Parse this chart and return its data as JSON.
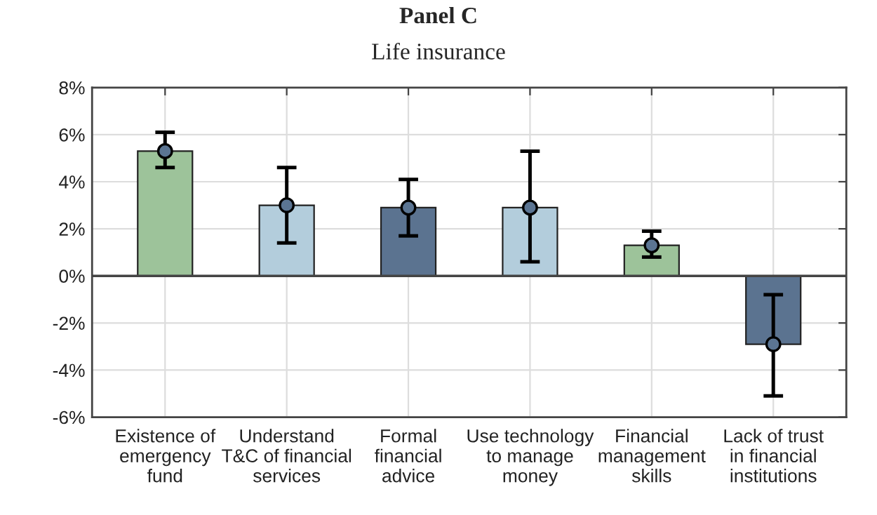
{
  "chart_data": {
    "type": "bar",
    "title": "Panel C",
    "subtitle": "Life insurance",
    "categories": [
      "Existence of\nemergency\nfund",
      "Understand\nT&C of financial\nservices",
      "Formal\nfinancial\nadvice",
      "Use technology\nto manage\nmoney",
      "Financial\nmanagement\nskills",
      "Lack of trust\nin financial\ninstitutions"
    ],
    "series": [
      {
        "colors": [
          "#9dc39a",
          "#b3cddc",
          "#5b7390",
          "#b3cddc",
          "#9dc39a",
          "#5b7390"
        ],
        "values": [
          5.3,
          3.0,
          2.9,
          2.9,
          1.3,
          -2.9
        ]
      },
      {
        "type": "scatter",
        "color": "#5b7593",
        "x": [
          "Existence of\nemergency\nfund",
          "Understand\nT&C of financial\nservices",
          "Formal\nfinancial\nadvice",
          "Use technology\nto manage\nmoney",
          "Financial\nmanagement\nskills",
          "Lack of trust\nin financial\ninstitutions"
        ],
        "values": [
          5.3,
          3.0,
          2.9,
          2.9,
          1.3,
          -2.9
        ],
        "errors": [
          [
            4.6,
            6.1
          ],
          [
            1.4,
            4.6
          ],
          [
            1.7,
            4.1
          ],
          [
            0.6,
            5.3
          ],
          [
            0.8,
            1.9
          ],
          [
            -5.1,
            -0.8
          ]
        ]
      }
    ],
    "ylim": [
      -6,
      8
    ],
    "yticks": [
      {
        "value": -6,
        "label": "-6%"
      },
      {
        "value": -4,
        "label": "-4%"
      },
      {
        "value": -2,
        "label": "-2%"
      },
      {
        "value": 0,
        "label": "0%"
      },
      {
        "value": 2,
        "label": "2%"
      },
      {
        "value": 4,
        "label": "4%"
      },
      {
        "value": 6,
        "label": "6%"
      },
      {
        "value": 8,
        "label": "8%"
      }
    ],
    "grid": true,
    "marker": "circle"
  }
}
